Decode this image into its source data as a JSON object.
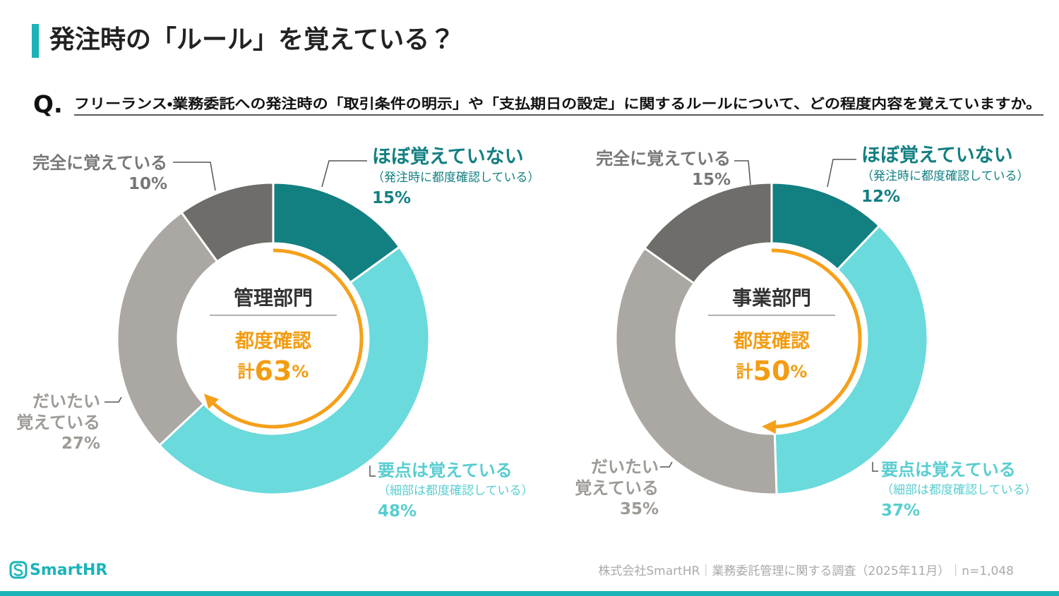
{
  "title": "発注時の「ルール」を覚えている？",
  "question_mark": "Q.",
  "question": "フリーランス・業務委託への発注時の「取引条件の明示」や「支払期日の設定」に関するルールについて、どの程度内容を覚えていますか。",
  "chart_data": [
    {
      "type": "pie",
      "donut": true,
      "title": "管理部門",
      "center_label": "都度確認",
      "center_total_prefix": "計",
      "center_total": 63,
      "center_total_unit": "%",
      "categories": [
        "ほぼ覚えていない",
        "要点は覚えている",
        "だいたい\n覚えている",
        "完全に覚えている"
      ],
      "notes": [
        "（発注時に都度確認している）",
        "（細部は都度確認している）",
        null,
        null
      ],
      "values": [
        15,
        48,
        27,
        10
      ],
      "value_labels": [
        "15%",
        "48%",
        "27%",
        "10%"
      ],
      "colors": [
        "#127f81",
        "#6adadc",
        "#aba7a2",
        "#6f6d6a"
      ]
    },
    {
      "type": "pie",
      "donut": true,
      "title": "事業部門",
      "center_label": "都度確認",
      "center_total_prefix": "計",
      "center_total": 50,
      "center_total_unit": "%",
      "categories": [
        "ほぼ覚えていない",
        "要点は覚えている",
        "だいたい\n覚えている",
        "完全に覚えている"
      ],
      "notes": [
        "（発注時に都度確認している）",
        "（細部は都度確認している）",
        null,
        null
      ],
      "values": [
        12,
        37,
        35,
        15
      ],
      "value_labels": [
        "12%",
        "37%",
        "35%",
        "15%"
      ],
      "colors": [
        "#127f81",
        "#6adadc",
        "#aba7a2",
        "#6f6d6a"
      ]
    }
  ],
  "brand": "SmartHR",
  "source": "株式会社SmartHR｜業務委託管理に関する調査（2025年11月）｜n=1,048"
}
